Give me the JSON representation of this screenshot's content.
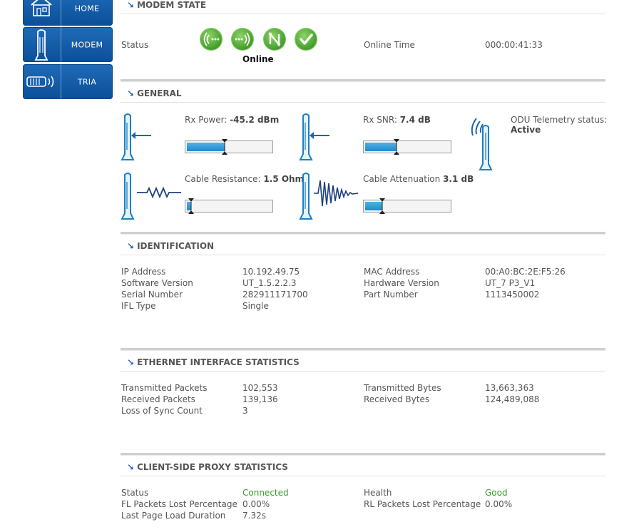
{
  "nav": {
    "home_label": "HOME",
    "modem_label": "MODEM",
    "tria_label": "TRIA"
  },
  "modem_state": {
    "title": "MODEM STATE",
    "status_label": "Status",
    "status_value": "Online",
    "online_time_label": "Online Time",
    "online_time_value": "000:00:41:33",
    "icons": [
      "receive-signal-icon",
      "transmit-signal-icon",
      "network-icon",
      "online-check-icon"
    ]
  },
  "general": {
    "title": "GENERAL",
    "rx_power_label": "Rx Power:",
    "rx_power_value": "-45.2 dBm",
    "rx_power_level": 0.45,
    "rx_snr_label": "Rx SNR:",
    "rx_snr_value": "7.4 dB",
    "rx_snr_level": 0.37,
    "odu_label": "ODU Telemetry status:",
    "odu_value": "Active",
    "cable_res_label": "Cable Resistance:",
    "cable_res_value": "1.5 Ohms",
    "cable_res_level": 0.05,
    "cable_att_label": "Cable Attenuation",
    "cable_att_value": "3.1 dB",
    "cable_att_level": 0.2
  },
  "identification": {
    "title": "IDENTIFICATION",
    "ip_label": "IP Address",
    "ip_value": "10.192.49.75",
    "sw_label": "Software Version",
    "sw_value": "UT_1.5.2.2.3",
    "serial_label": "Serial Number",
    "serial_value": "282911171700",
    "ifl_label": "IFL Type",
    "ifl_value": "Single",
    "mac_label": "MAC Address",
    "mac_value": "00:A0:BC:2E:F5:26",
    "hw_label": "Hardware Version",
    "hw_value": "UT_7 P3_V1",
    "part_label": "Part Number",
    "part_value": "1113450002"
  },
  "ethernet": {
    "title": "ETHERNET INTERFACE STATISTICS",
    "tx_packets_label": "Transmitted Packets",
    "tx_packets_value": "102,553",
    "rx_packets_label": "Received Packets",
    "rx_packets_value": "139,136",
    "sync_label": "Loss of Sync Count",
    "sync_value": "3",
    "tx_bytes_label": "Transmitted Bytes",
    "tx_bytes_value": "13,663,363",
    "rx_bytes_label": "Received Bytes",
    "rx_bytes_value": "124,489,088"
  },
  "proxy": {
    "title": "CLIENT-SIDE PROXY STATISTICS",
    "status_label": "Status",
    "status_value": "Connected",
    "fl_label": "FL Packets Lost Percentage",
    "fl_value": "0.00%",
    "load_label": "Last Page Load Duration",
    "load_value": "7.32s",
    "health_label": "Health",
    "health_value": "Good",
    "rl_label": "RL Packets Lost Percentage",
    "rl_value": "0.00%"
  },
  "colors": {
    "nav_blue": "#0b4f99",
    "meter_blue": "#1f8ad0",
    "ok_green": "#3a9a2e",
    "accent_arrow": "#1c64b4"
  }
}
